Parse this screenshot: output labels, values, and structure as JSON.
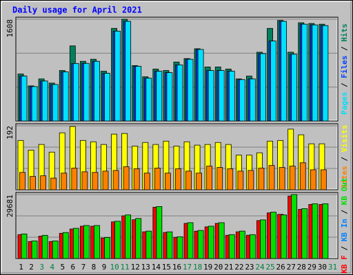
{
  "title": "Daily usage for April 2021",
  "legend_separator": " / ",
  "categories": [
    "1",
    "2",
    "3",
    "4",
    "5",
    "6",
    "7",
    "8",
    "9",
    "10",
    "11",
    "12",
    "13",
    "14",
    "15",
    "16",
    "17",
    "18",
    "19",
    "20",
    "21",
    "22",
    "23",
    "24",
    "25",
    "26",
    "27",
    "28",
    "29",
    "30",
    "31"
  ],
  "label_colors": [
    "#000000",
    "#000000",
    "#008040",
    "#008040",
    "#000000",
    "#000000",
    "#000000",
    "#000000",
    "#000000",
    "#008040",
    "#008040",
    "#000000",
    "#000000",
    "#000000",
    "#000000",
    "#000000",
    "#008040",
    "#008040",
    "#000000",
    "#000000",
    "#000000",
    "#000000",
    "#000000",
    "#008040",
    "#008040",
    "#000000",
    "#000000",
    "#000000",
    "#000000",
    "#000000",
    "#008040"
  ],
  "chart_data": [
    {
      "type": "bar",
      "ylim": [
        0,
        1608
      ],
      "yticks": [
        1608
      ],
      "draw_reversed": true,
      "series": [
        {
          "name": "Pages",
          "color": "#00e0ff",
          "values": [
            710,
            544,
            632,
            577,
            776,
            909,
            910,
            943,
            754,
            1420,
            1575,
            865,
            677,
            787,
            765,
            887,
            976,
            1131,
            798,
            798,
            787,
            654,
            665,
            1065,
            1264,
            1575,
            1054,
            1530,
            1519,
            1508,
            null
          ]
        },
        {
          "name": "Files",
          "color": "#0040ff",
          "values": [
            710,
            544,
            632,
            577,
            776,
            909,
            910,
            943,
            754,
            1420,
            1575,
            865,
            677,
            787,
            765,
            887,
            976,
            1131,
            798,
            798,
            787,
            654,
            665,
            1065,
            1264,
            1575,
            1054,
            1530,
            1519,
            1508,
            null
          ]
        },
        {
          "name": "Hits",
          "color": "#00805c",
          "values": [
            743,
            555,
            665,
            599,
            798,
            1187,
            943,
            976,
            787,
            1464,
            1608,
            876,
            699,
            821,
            798,
            932,
            987,
            1142,
            854,
            854,
            821,
            665,
            710,
            1087,
            1464,
            1590,
            1087,
            1553,
            1541,
            1530,
            null
          ]
        }
      ]
    },
    {
      "type": "bar",
      "ylim": [
        0,
        192
      ],
      "yticks": [
        192
      ],
      "draw_reversed": true,
      "series": [
        {
          "name": "Sites",
          "color": "#ff8000",
          "values": [
            52,
            40,
            42,
            35,
            50,
            65,
            54,
            52,
            56,
            58,
            69,
            63,
            50,
            65,
            50,
            63,
            56,
            50,
            71,
            67,
            63,
            56,
            58,
            65,
            73,
            67,
            71,
            81,
            60,
            60,
            null
          ]
        },
        {
          "name": "Visits",
          "color": "#ffff00",
          "values": [
            148,
            119,
            136,
            113,
            171,
            190,
            148,
            144,
            136,
            167,
            169,
            131,
            142,
            136,
            146,
            131,
            144,
            134,
            136,
            142,
            136,
            104,
            104,
            111,
            146,
            148,
            182,
            165,
            138,
            138,
            null
          ]
        }
      ]
    },
    {
      "type": "bar",
      "ylim": [
        0,
        29681
      ],
      "yticks": [
        29681
      ],
      "draw_reversed": false,
      "series": [
        {
          "name": "KB F",
          "color": "#ff0000",
          "values": [
            11100,
            7900,
            10400,
            7900,
            11700,
            13700,
            15000,
            15000,
            9500,
            17000,
            19800,
            18000,
            12400,
            23800,
            12100,
            9800,
            16300,
            12700,
            14700,
            16300,
            10800,
            12400,
            10800,
            17600,
            21200,
            20500,
            29000,
            22800,
            25100,
            25100,
            null
          ]
        },
        {
          "name": "KB In",
          "color": "#0080ff",
          "values": [
            null,
            null,
            null,
            null,
            null,
            null,
            null,
            null,
            null,
            null,
            null,
            null,
            null,
            null,
            null,
            null,
            null,
            null,
            null,
            null,
            null,
            null,
            null,
            null,
            null,
            null,
            null,
            null,
            null,
            null,
            null
          ]
        },
        {
          "name": "KB Out",
          "color": "#00e000",
          "values": [
            11410,
            8150,
            10758,
            8150,
            12062,
            14018,
            15322,
            15322,
            9780,
            17278,
            20212,
            18582,
            12714,
            24124,
            12388,
            10106,
            16626,
            13040,
            14996,
            16626,
            11084,
            12714,
            11084,
            17930,
            21516,
            20212,
            29681,
            23146,
            25428,
            25428,
            null
          ]
        }
      ]
    }
  ]
}
